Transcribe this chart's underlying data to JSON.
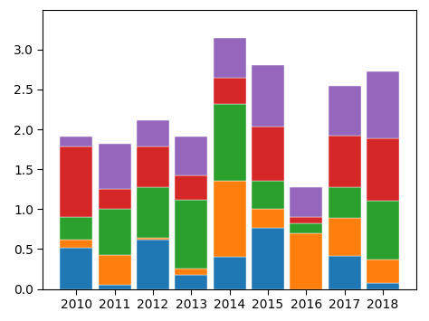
{
  "years": [
    2010,
    2011,
    2012,
    2013,
    2014,
    2015,
    2016,
    2017,
    2018
  ],
  "blue": [
    0.52,
    0.05,
    0.62,
    0.17,
    0.4,
    0.77,
    0.0,
    0.41,
    0.07
  ],
  "orange": [
    0.1,
    0.38,
    0.02,
    0.08,
    0.95,
    0.23,
    0.7,
    0.48,
    0.3
  ],
  "green": [
    0.28,
    0.57,
    0.63,
    0.87,
    0.97,
    0.35,
    0.12,
    0.38,
    0.73
  ],
  "red": [
    0.88,
    0.25,
    0.52,
    0.3,
    0.33,
    0.68,
    0.08,
    0.65,
    0.79
  ],
  "purple": [
    0.13,
    0.57,
    0.32,
    0.49,
    0.5,
    0.77,
    0.38,
    0.62,
    0.83
  ],
  "colors": [
    "#1f77b4",
    "#ff7f0e",
    "#2ca02c",
    "#d62728",
    "#9467bd"
  ],
  "ylim": [
    0.0,
    3.5
  ],
  "yticks": [
    0.0,
    0.5,
    1.0,
    1.5,
    2.0,
    2.5,
    3.0
  ],
  "bar_width": 0.85,
  "figsize": [
    4.74,
    3.55
  ],
  "dpi": 100
}
